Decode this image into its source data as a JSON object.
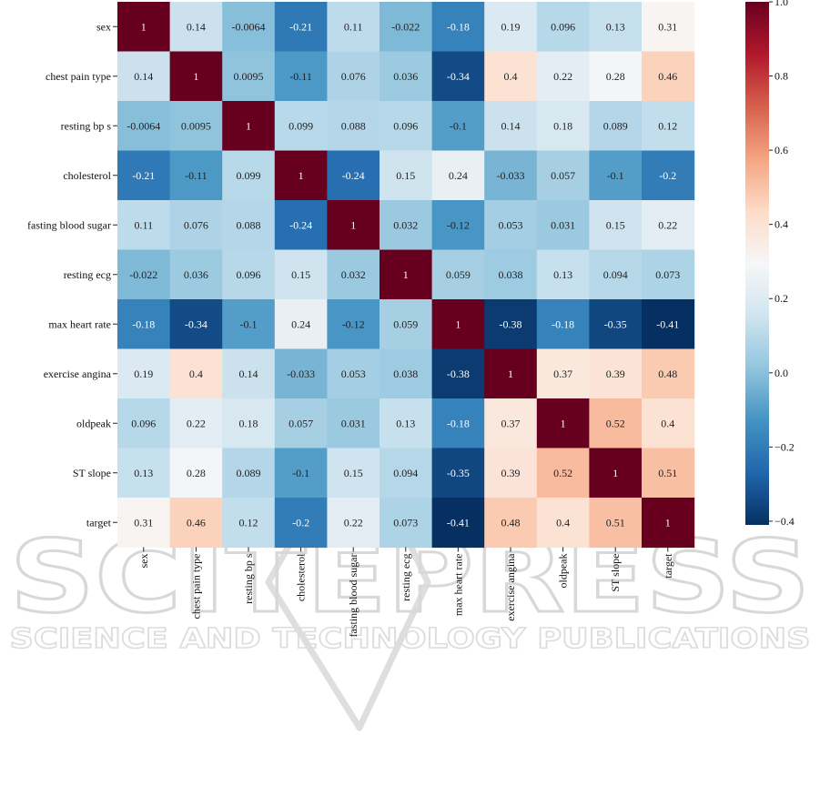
{
  "chart_data": {
    "type": "heatmap",
    "title": "",
    "xlabel": "",
    "ylabel": "",
    "labels": [
      "sex",
      "chest pain type",
      "resting bp s",
      "cholesterol",
      "fasting blood sugar",
      "resting ecg",
      "max heart rate",
      "exercise angina",
      "oldpeak",
      "ST slope",
      "target"
    ],
    "matrix": [
      [
        1,
        0.14,
        -0.0064,
        -0.21,
        0.11,
        -0.022,
        -0.18,
        0.19,
        0.096,
        0.13,
        0.31
      ],
      [
        0.14,
        1,
        0.0095,
        -0.11,
        0.076,
        0.036,
        -0.34,
        0.4,
        0.22,
        0.28,
        0.46
      ],
      [
        -0.0064,
        0.0095,
        1,
        0.099,
        0.088,
        0.096,
        -0.1,
        0.14,
        0.18,
        0.089,
        0.12
      ],
      [
        -0.21,
        -0.11,
        0.099,
        1,
        -0.24,
        0.15,
        0.24,
        -0.033,
        0.057,
        -0.1,
        -0.2
      ],
      [
        0.11,
        0.076,
        0.088,
        -0.24,
        1,
        0.032,
        -0.12,
        0.053,
        0.031,
        0.15,
        0.22
      ],
      [
        -0.022,
        0.036,
        0.096,
        0.15,
        0.032,
        1,
        0.059,
        0.038,
        0.13,
        0.094,
        0.073
      ],
      [
        -0.18,
        -0.34,
        -0.1,
        0.24,
        -0.12,
        0.059,
        1,
        -0.38,
        -0.18,
        -0.35,
        -0.41
      ],
      [
        0.19,
        0.4,
        0.14,
        -0.033,
        0.053,
        0.038,
        -0.38,
        1,
        0.37,
        0.39,
        0.48
      ],
      [
        0.096,
        0.22,
        0.18,
        0.057,
        0.031,
        0.13,
        -0.18,
        0.37,
        1,
        0.52,
        0.4
      ],
      [
        0.13,
        0.28,
        0.089,
        -0.1,
        0.15,
        0.094,
        -0.35,
        0.39,
        0.52,
        1,
        0.51
      ],
      [
        0.31,
        0.46,
        0.12,
        -0.2,
        0.22,
        0.073,
        -0.41,
        0.48,
        0.4,
        0.51,
        1
      ]
    ],
    "colorbar": {
      "colormap": "RdBu_r",
      "vmin": -0.41,
      "vmax": 1.0,
      "ticks": [
        1.0,
        0.8,
        0.6,
        0.4,
        0.2,
        0.0,
        -0.2,
        -0.4
      ],
      "tick_labels": [
        "1.0",
        "0.8",
        "0.6",
        "0.4",
        "0.2",
        "0.0",
        "−0.2",
        "−0.4"
      ]
    },
    "annotations": true,
    "grid": false,
    "legend": "colorbar-right"
  },
  "watermark": {
    "main_text": "SCITEPRESS",
    "sub_text": "SCIENCE AND TECHNOLOGY PUBLICATIONS"
  }
}
